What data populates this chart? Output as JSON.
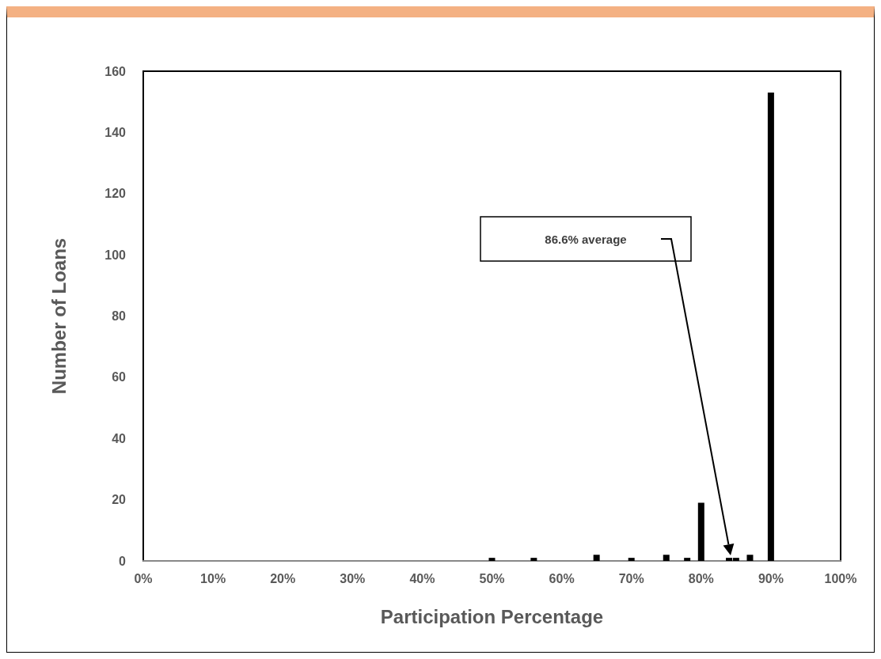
{
  "chart_data": {
    "type": "bar",
    "xlabel": "Participation Percentage",
    "ylabel": "Number of Loans",
    "x": [
      50,
      56,
      65,
      70,
      75,
      78,
      80,
      84,
      85,
      87,
      90
    ],
    "values": [
      1,
      1,
      2,
      1,
      2,
      1,
      19,
      1,
      1,
      2,
      153
    ],
    "color": "#000000",
    "xlim": [
      0,
      100
    ],
    "xticks": [
      {
        "value": 0,
        "label": "0%"
      },
      {
        "value": 10,
        "label": "10%"
      },
      {
        "value": 20,
        "label": "20%"
      },
      {
        "value": 30,
        "label": "30%"
      },
      {
        "value": 40,
        "label": "40%"
      },
      {
        "value": 50,
        "label": "50%"
      },
      {
        "value": 60,
        "label": "60%"
      },
      {
        "value": 70,
        "label": "70%"
      },
      {
        "value": 80,
        "label": "80%"
      },
      {
        "value": 90,
        "label": "90%"
      },
      {
        "value": 100,
        "label": "100%"
      }
    ],
    "ylim": [
      0,
      160
    ],
    "yticks": [
      0,
      20,
      40,
      60,
      80,
      100,
      120,
      140,
      160
    ],
    "grid": false,
    "annotations": [
      "86.6% average"
    ]
  }
}
